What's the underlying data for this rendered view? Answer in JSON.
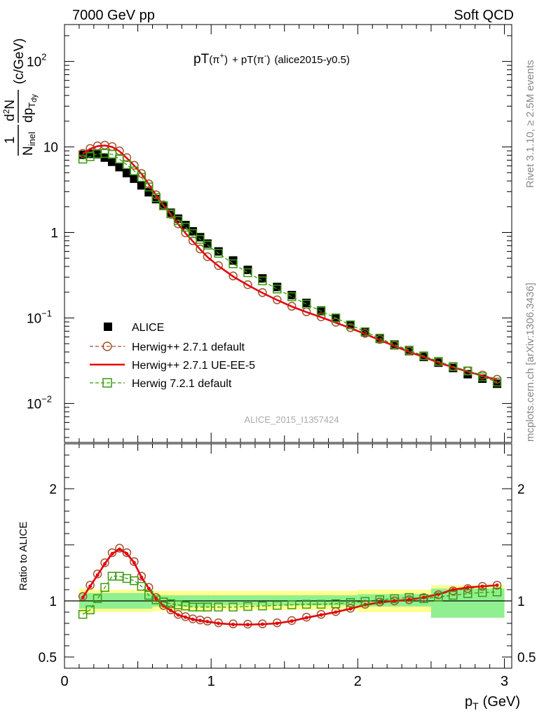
{
  "header": {
    "energy_label": "7000 GeV pp",
    "category_label": "Soft QCD"
  },
  "plot_title": {
    "main": "pT",
    "pi_plus": "(π",
    "plus_sup": "+",
    "close1": ")",
    "plus": "+ pT(π",
    "minus_sup": "-",
    "close2": ")",
    "tag": "(alice2015-y0.5)"
  },
  "side_labels": {
    "rivet": "Rivet 3.1.10, ≥ 2.5M events",
    "mcplots": "mcplots.cern.ch [arXiv:1306.3436]"
  },
  "watermark": "ALICE_2015_I1357424",
  "y_axis_main": {
    "frac_num": "1",
    "frac_den_N": "N",
    "frac_den_sub": "inel",
    "d2N": "d",
    "d2N_sup": "2",
    "d2N_N": "N",
    "dpT": "dp",
    "dpT_sub": "T",
    "dpT_sub2": "dy",
    "units": "(c/GeV)"
  },
  "y_axis_ratio_label": "Ratio to ALICE",
  "x_axis_label": {
    "p": "p",
    "sub": "T",
    "unit": "(GeV)"
  },
  "main_ticks": [
    {
      "value": 100,
      "base": "10",
      "exp": "2"
    },
    {
      "value": 10,
      "base": "10",
      "exp": ""
    },
    {
      "value": 1,
      "base": "1",
      "exp": ""
    },
    {
      "value": 0.1,
      "base": "10",
      "exp": "−1"
    },
    {
      "value": 0.01,
      "base": "10",
      "exp": "−2"
    }
  ],
  "ratio_ticks": [
    {
      "value": 2,
      "label": "2"
    },
    {
      "value": 1,
      "label": "1"
    },
    {
      "value": 0.5,
      "label": "0.5"
    }
  ],
  "x_ticks": [
    {
      "value": 0,
      "label": "0"
    },
    {
      "value": 1,
      "label": "1"
    },
    {
      "value": 2,
      "label": "2"
    },
    {
      "value": 3,
      "label": "3"
    }
  ],
  "legend": [
    {
      "key": "alice",
      "label": "ALICE"
    },
    {
      "key": "h271",
      "label": "Herwig++ 2.7.1 default"
    },
    {
      "key": "ueee5",
      "label": "Herwig++ 2.7.1 UE-EE-5"
    },
    {
      "key": "h721",
      "label": "Herwig 7.2.1 default"
    }
  ],
  "colors": {
    "alice": "#000000",
    "h271": "#a0522d",
    "ueee5": "#e8000b",
    "h721": "#3a9a0e",
    "band_inner": "#90f090",
    "band_outer": "#ffff90"
  },
  "chart_data": {
    "type": "line",
    "x_label": "pT (GeV)",
    "main_panel": {
      "yscale": "log",
      "xlim": [
        0,
        3.05
      ],
      "ylim": [
        0.0035,
        270
      ],
      "x": [
        0.125,
        0.175,
        0.225,
        0.275,
        0.325,
        0.375,
        0.425,
        0.475,
        0.525,
        0.575,
        0.625,
        0.675,
        0.725,
        0.775,
        0.825,
        0.875,
        0.925,
        0.975,
        1.05,
        1.15,
        1.25,
        1.35,
        1.45,
        1.55,
        1.65,
        1.75,
        1.85,
        1.95,
        2.05,
        2.15,
        2.25,
        2.35,
        2.45,
        2.55,
        2.65,
        2.75,
        2.85,
        2.95
      ],
      "series": [
        {
          "key": "alice",
          "name": "ALICE",
          "values": [
            8.1,
            8.3,
            8.2,
            7.5,
            6.7,
            5.8,
            4.95,
            4.25,
            3.55,
            2.95,
            2.45,
            2.05,
            1.7,
            1.45,
            1.22,
            1.03,
            0.88,
            0.74,
            0.6,
            0.47,
            0.365,
            0.29,
            0.23,
            0.185,
            0.15,
            0.122,
            0.1,
            0.083,
            0.068,
            0.057,
            0.048,
            0.041,
            0.035,
            0.03,
            0.026,
            0.022,
            0.0195,
            0.017
          ]
        },
        {
          "key": "h271",
          "name": "Herwig++ 2.7.1 default",
          "values": [
            8.4,
            9.6,
            10.3,
            10.5,
            10.1,
            9.0,
            7.5,
            6.1,
            4.9,
            3.7,
            2.75,
            2.1,
            1.63,
            1.26,
            0.99,
            0.8,
            0.64,
            0.52,
            0.41,
            0.31,
            0.245,
            0.198,
            0.163,
            0.137,
            0.118,
            0.103,
            0.089,
            0.077,
            0.066,
            0.056,
            0.048,
            0.041,
            0.036,
            0.031,
            0.027,
            0.024,
            0.0215,
            0.0192
          ]
        },
        {
          "key": "ueee5",
          "name": "Herwig++ 2.7.1 UE-EE-5",
          "values": [
            8.3,
            9.5,
            10.2,
            10.4,
            10.0,
            8.9,
            7.4,
            6.05,
            4.85,
            3.65,
            2.72,
            2.08,
            1.62,
            1.25,
            0.98,
            0.79,
            0.635,
            0.515,
            0.405,
            0.305,
            0.242,
            0.196,
            0.162,
            0.136,
            0.117,
            0.102,
            0.088,
            0.076,
            0.065,
            0.055,
            0.047,
            0.04,
            0.035,
            0.03,
            0.0265,
            0.0235,
            0.021,
            0.0188
          ]
        },
        {
          "key": "h721",
          "name": "Herwig 7.2.1 default",
          "values": [
            7.2,
            7.7,
            8.3,
            8.4,
            8.2,
            7.2,
            6.2,
            5.25,
            4.4,
            3.4,
            2.55,
            2.05,
            1.65,
            1.38,
            1.15,
            0.97,
            0.83,
            0.71,
            0.57,
            0.43,
            0.338,
            0.272,
            0.218,
            0.177,
            0.145,
            0.12,
            0.1,
            0.083,
            0.069,
            0.058,
            0.049,
            0.042,
            0.036,
            0.031,
            0.027,
            0.024,
            0.0205,
            0.0178
          ]
        }
      ]
    },
    "ratio_panel": {
      "ylabel": "Ratio to ALICE",
      "ylim": [
        0.4,
        2.4
      ],
      "bands": [
        {
          "x_from": 0.1,
          "x_to": 0.2,
          "inner": [
            0.93,
            1.07
          ],
          "outer": [
            0.89,
            1.11
          ]
        },
        {
          "x_from": 0.2,
          "x_to": 0.6,
          "inner": [
            0.93,
            1.07
          ],
          "outer": [
            0.9,
            1.1
          ]
        },
        {
          "x_from": 0.6,
          "x_to": 1.0,
          "inner": [
            0.95,
            1.05
          ],
          "outer": [
            0.91,
            1.09
          ]
        },
        {
          "x_from": 1.0,
          "x_to": 2.0,
          "inner": [
            0.96,
            1.05
          ],
          "outer": [
            0.92,
            1.09
          ]
        },
        {
          "x_from": 2.0,
          "x_to": 2.5,
          "inner": [
            0.95,
            1.06
          ],
          "outer": [
            0.9,
            1.1
          ]
        },
        {
          "x_from": 2.5,
          "x_to": 3.0,
          "inner": [
            0.85,
            1.11
          ],
          "outer": [
            0.85,
            1.14
          ]
        }
      ],
      "series": [
        {
          "key": "h271",
          "values": [
            1.04,
            1.14,
            1.24,
            1.34,
            1.43,
            1.47,
            1.43,
            1.35,
            1.22,
            1.12,
            1.03,
            0.96,
            0.92,
            0.88,
            0.86,
            0.84,
            0.83,
            0.82,
            0.805,
            0.795,
            0.793,
            0.795,
            0.805,
            0.825,
            0.855,
            0.88,
            0.905,
            0.935,
            0.97,
            0.99,
            1.0,
            1.01,
            1.03,
            1.055,
            1.09,
            1.11,
            1.13,
            1.14
          ]
        },
        {
          "key": "ueee5",
          "values": [
            1.03,
            1.13,
            1.23,
            1.33,
            1.42,
            1.46,
            1.42,
            1.34,
            1.21,
            1.11,
            1.02,
            0.955,
            0.915,
            0.875,
            0.855,
            0.835,
            0.825,
            0.815,
            0.8,
            0.79,
            0.788,
            0.792,
            0.8,
            0.82,
            0.85,
            0.875,
            0.9,
            0.93,
            0.965,
            0.985,
            1.0,
            1.01,
            1.03,
            1.06,
            1.1,
            1.12,
            1.13,
            1.14
          ]
        },
        {
          "key": "h721",
          "values": [
            0.88,
            0.92,
            1.02,
            1.12,
            1.22,
            1.22,
            1.2,
            1.18,
            1.13,
            1.05,
            1.01,
            0.99,
            0.975,
            0.965,
            0.955,
            0.945,
            0.945,
            0.945,
            0.945,
            0.945,
            0.95,
            0.955,
            0.96,
            0.965,
            0.97,
            0.97,
            0.975,
            0.985,
            0.995,
            1.01,
            1.02,
            1.03,
            1.02,
            1.035,
            1.05,
            1.065,
            1.075,
            1.08
          ]
        }
      ]
    }
  }
}
